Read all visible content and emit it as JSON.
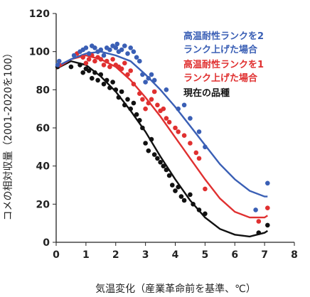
{
  "chart_data": {
    "type": "scatter",
    "xlabel": "気温変化（産業革命前を基準、℃）",
    "ylabel": "コメの相対収量（2001-2020を100）",
    "xlim": [
      0,
      8
    ],
    "ylim": [
      0,
      120
    ],
    "x_ticks": [
      "0",
      "1",
      "2",
      "3",
      "4",
      "5",
      "6",
      "7",
      "8"
    ],
    "y_ticks": [
      "0",
      "20",
      "40",
      "60",
      "80",
      "100",
      "120"
    ],
    "grid": false,
    "legend_position": "top-right",
    "series": [
      {
        "name": "高温耐性ランクを2ランク上げた場合",
        "color": "#3a5fb5",
        "points": [
          [
            0.05,
            93
          ],
          [
            0.1,
            95
          ],
          [
            0.6,
            98
          ],
          [
            0.8,
            100
          ],
          [
            0.9,
            101
          ],
          [
            1.0,
            102
          ],
          [
            1.1,
            99
          ],
          [
            1.2,
            103
          ],
          [
            1.3,
            102
          ],
          [
            1.4,
            100
          ],
          [
            1.5,
            101
          ],
          [
            1.6,
            98
          ],
          [
            1.7,
            102
          ],
          [
            1.8,
            101
          ],
          [
            1.9,
            103
          ],
          [
            2.0,
            102
          ],
          [
            2.05,
            104
          ],
          [
            2.1,
            100
          ],
          [
            2.2,
            101
          ],
          [
            2.3,
            103
          ],
          [
            2.4,
            99
          ],
          [
            2.5,
            102
          ],
          [
            2.6,
            100
          ],
          [
            2.7,
            97
          ],
          [
            2.8,
            95
          ],
          [
            2.9,
            88
          ],
          [
            3.0,
            84
          ],
          [
            3.1,
            86
          ],
          [
            3.2,
            88
          ],
          [
            3.3,
            85
          ],
          [
            3.7,
            80
          ],
          [
            4.1,
            70
          ],
          [
            4.3,
            72
          ],
          [
            4.5,
            65
          ],
          [
            4.8,
            58
          ],
          [
            5.0,
            50
          ],
          [
            6.7,
            17
          ],
          [
            7.1,
            31
          ]
        ],
        "curve": [
          [
            0,
            92
          ],
          [
            0.5,
            96
          ],
          [
            1,
            99
          ],
          [
            1.5,
            100
          ],
          [
            2,
            98
          ],
          [
            2.5,
            95
          ],
          [
            3,
            88
          ],
          [
            3.5,
            80
          ],
          [
            4,
            71
          ],
          [
            4.5,
            61
          ],
          [
            5,
            51
          ],
          [
            5.5,
            41
          ],
          [
            6,
            33
          ],
          [
            6.5,
            27
          ],
          [
            7,
            24
          ],
          [
            7.1,
            24
          ]
        ]
      },
      {
        "name": "高温耐性ランクを1ランク上げた場合",
        "color": "#e03030",
        "points": [
          [
            0.1,
            93
          ],
          [
            0.7,
            99
          ],
          [
            0.9,
            97
          ],
          [
            1.0,
            94
          ],
          [
            1.1,
            96
          ],
          [
            1.2,
            98
          ],
          [
            1.3,
            95
          ],
          [
            1.4,
            97
          ],
          [
            1.5,
            96
          ],
          [
            1.6,
            93
          ],
          [
            1.7,
            95
          ],
          [
            1.8,
            92
          ],
          [
            1.9,
            96
          ],
          [
            2.0,
            93
          ],
          [
            2.1,
            92
          ],
          [
            2.2,
            91
          ],
          [
            2.3,
            94
          ],
          [
            2.4,
            88
          ],
          [
            2.5,
            90
          ],
          [
            2.6,
            83
          ],
          [
            2.8,
            78
          ],
          [
            2.9,
            75
          ],
          [
            3.0,
            70
          ],
          [
            3.1,
            73
          ],
          [
            3.2,
            75
          ],
          [
            3.3,
            79
          ],
          [
            3.4,
            72
          ],
          [
            3.5,
            69
          ],
          [
            3.6,
            70
          ],
          [
            3.7,
            65
          ],
          [
            3.8,
            63
          ],
          [
            4.0,
            60
          ],
          [
            4.1,
            58
          ],
          [
            4.3,
            56
          ],
          [
            4.5,
            52
          ],
          [
            4.7,
            47
          ],
          [
            4.8,
            44
          ],
          [
            5.0,
            28
          ],
          [
            6.8,
            11
          ],
          [
            7.1,
            18
          ]
        ],
        "curve": [
          [
            0,
            91
          ],
          [
            0.5,
            96
          ],
          [
            1,
            98
          ],
          [
            1.5,
            96
          ],
          [
            2,
            92
          ],
          [
            2.5,
            85
          ],
          [
            3,
            76
          ],
          [
            3.5,
            66
          ],
          [
            4,
            55
          ],
          [
            4.5,
            44
          ],
          [
            5,
            33
          ],
          [
            5.5,
            23
          ],
          [
            6,
            16
          ],
          [
            6.5,
            13
          ],
          [
            7,
            13
          ],
          [
            7.1,
            14
          ]
        ]
      },
      {
        "name": "現在の品種",
        "color": "#111111",
        "points": [
          [
            0.05,
            92
          ],
          [
            0.5,
            92
          ],
          [
            0.8,
            93
          ],
          [
            0.9,
            89
          ],
          [
            1.0,
            91
          ],
          [
            1.1,
            90
          ],
          [
            1.2,
            86
          ],
          [
            1.3,
            89
          ],
          [
            1.4,
            85
          ],
          [
            1.5,
            88
          ],
          [
            1.6,
            83
          ],
          [
            1.7,
            85
          ],
          [
            1.8,
            81
          ],
          [
            1.9,
            84
          ],
          [
            2.0,
            80
          ],
          [
            2.1,
            76
          ],
          [
            2.2,
            79
          ],
          [
            2.3,
            72
          ],
          [
            2.4,
            75
          ],
          [
            2.5,
            70
          ],
          [
            2.6,
            73
          ],
          [
            2.7,
            67
          ],
          [
            2.8,
            64
          ],
          [
            2.9,
            60
          ],
          [
            3.0,
            52
          ],
          [
            3.1,
            48
          ],
          [
            3.2,
            54
          ],
          [
            3.3,
            46
          ],
          [
            3.4,
            44
          ],
          [
            3.5,
            42
          ],
          [
            3.6,
            40
          ],
          [
            3.7,
            38
          ],
          [
            3.8,
            35
          ],
          [
            3.9,
            30
          ],
          [
            4.0,
            27
          ],
          [
            4.1,
            29
          ],
          [
            4.2,
            24
          ],
          [
            4.3,
            22
          ],
          [
            4.5,
            25
          ],
          [
            4.6,
            20
          ],
          [
            4.8,
            17
          ],
          [
            5.0,
            15
          ],
          [
            6.8,
            5
          ],
          [
            7.1,
            9
          ]
        ],
        "curve": [
          [
            0,
            91
          ],
          [
            0.5,
            95
          ],
          [
            1,
            93
          ],
          [
            1.5,
            87
          ],
          [
            2,
            79
          ],
          [
            2.5,
            69
          ],
          [
            3,
            58
          ],
          [
            3.5,
            45
          ],
          [
            4,
            33
          ],
          [
            4.5,
            22
          ],
          [
            5,
            13
          ],
          [
            5.5,
            7
          ],
          [
            6,
            4
          ],
          [
            6.5,
            3
          ],
          [
            7,
            5
          ],
          [
            7.1,
            6
          ]
        ]
      }
    ]
  }
}
